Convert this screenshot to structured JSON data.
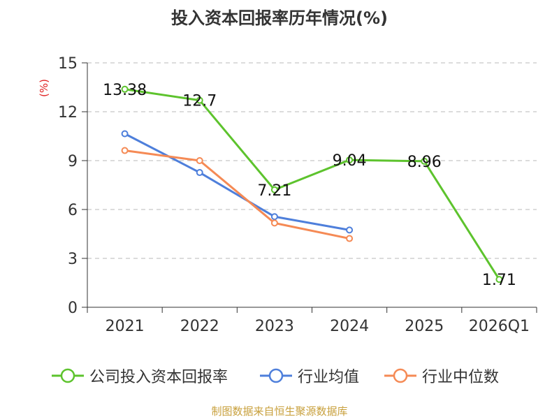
{
  "chart_data": {
    "type": "line",
    "title": "投入资本回报率历年情况(%)",
    "ylabel": "(%)",
    "xlabel": "",
    "categories": [
      "2021",
      "2022",
      "2023",
      "2024",
      "2025",
      "2026Q1"
    ],
    "yticks": [
      0,
      3,
      6,
      9,
      12,
      15
    ],
    "ylim": [
      0,
      15
    ],
    "grid": true,
    "legend_position": "bottom",
    "series": [
      {
        "name": "公司投入资本回报率",
        "color": "#5dc32d",
        "values": [
          13.38,
          12.7,
          7.21,
          9.04,
          8.96,
          1.71
        ],
        "labels": [
          "13.38",
          "12.7",
          "7.21",
          "9.04",
          "8.96",
          "1.71"
        ]
      },
      {
        "name": "行业均值",
        "color": "#4e7fdb",
        "values": [
          10.65,
          8.27,
          5.56,
          4.74,
          null,
          null
        ]
      },
      {
        "name": "行业中位数",
        "color": "#f58a55",
        "values": [
          9.62,
          9.0,
          5.17,
          4.22,
          null,
          null
        ]
      }
    ]
  },
  "footer": {
    "source": "制图数据来自恒生聚源数据库"
  }
}
